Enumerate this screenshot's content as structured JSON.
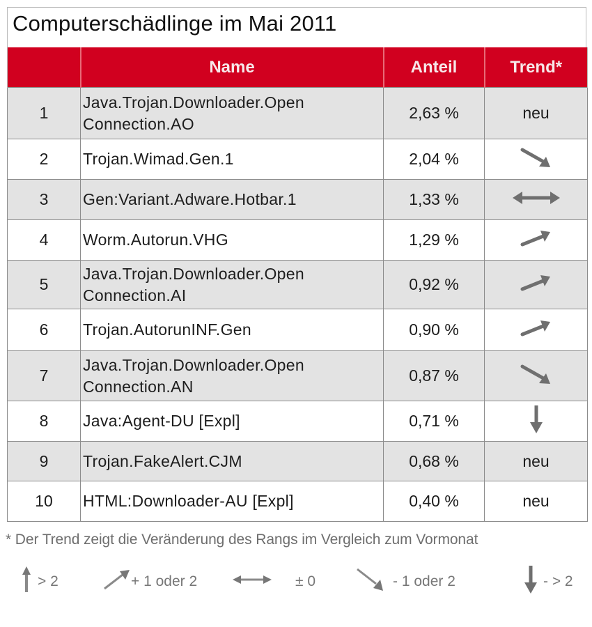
{
  "title": "Computerschädlinge im Mai 2011",
  "table": {
    "headers": {
      "rank": "",
      "name": "Name",
      "share": "Anteil",
      "trend": "Trend*"
    },
    "rows": [
      {
        "rank": "1",
        "name_line1": "Java.Trojan.Downloader.Open",
        "name_line2": "Connection.AO",
        "share": "2,63 %",
        "trend": "neu",
        "trend_icon": ""
      },
      {
        "rank": "2",
        "name_line1": "Trojan.Wimad.Gen.1",
        "name_line2": "",
        "share": "2,04 %",
        "trend": "",
        "trend_icon": "arrow-down-right-icon"
      },
      {
        "rank": "3",
        "name_line1": "Gen:Variant.Adware.Hotbar.1",
        "name_line2": "",
        "share": "1,33 %",
        "trend": "",
        "trend_icon": "arrow-left-right-icon"
      },
      {
        "rank": "4",
        "name_line1": "Worm.Autorun.VHG",
        "name_line2": "",
        "share": "1,29 %",
        "trend": "",
        "trend_icon": "arrow-up-right-icon"
      },
      {
        "rank": "5",
        "name_line1": "Java.Trojan.Downloader.Open",
        "name_line2": "Connection.AI",
        "share": "0,92 %",
        "trend": "",
        "trend_icon": "arrow-up-right-icon"
      },
      {
        "rank": "6",
        "name_line1": "Trojan.AutorunINF.Gen",
        "name_line2": "",
        "share": "0,90 %",
        "trend": "",
        "trend_icon": "arrow-up-right-icon"
      },
      {
        "rank": "7",
        "name_line1": "Java.Trojan.Downloader.Open",
        "name_line2": "Connection.AN",
        "share": "0,87 %",
        "trend": "",
        "trend_icon": "arrow-down-right-icon"
      },
      {
        "rank": "8",
        "name_line1": "Java:Agent-DU [Expl]",
        "name_line2": "",
        "share": "0,71 %",
        "trend": "",
        "trend_icon": "arrow-down-icon"
      },
      {
        "rank": "9",
        "name_line1": "Trojan.FakeAlert.CJM",
        "name_line2": "",
        "share": "0,68 %",
        "trend": "neu",
        "trend_icon": ""
      },
      {
        "rank": "10",
        "name_line1": "HTML:Downloader-AU [Expl]",
        "name_line2": "",
        "share": "0,40 %",
        "trend": "neu",
        "trend_icon": ""
      }
    ]
  },
  "footnote": "* Der Trend zeigt die Veränderung des Rangs im Vergleich zum Vormonat",
  "legend": [
    {
      "icon": "arrow-up-icon",
      "label": "> 2"
    },
    {
      "icon": "arrow-up-right-icon",
      "label": "+ 1 oder 2"
    },
    {
      "icon": "arrow-left-right-icon",
      "label": "± 0"
    },
    {
      "icon": "arrow-down-right-icon",
      "label": "- 1 oder  2"
    },
    {
      "icon": "arrow-down-icon",
      "label": "- > 2"
    }
  ],
  "colors": {
    "header_red": "#d1001f",
    "row_shade": "#e3e3e3",
    "arrow_gray": "#6f6f6f"
  }
}
